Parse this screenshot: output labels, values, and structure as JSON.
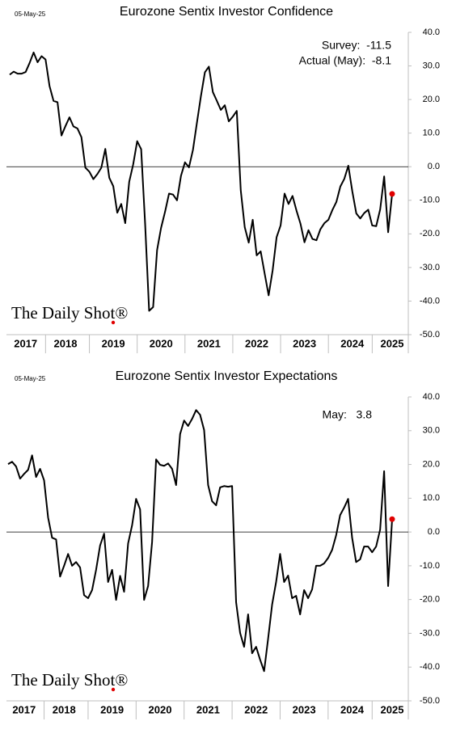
{
  "chart_data": [
    {
      "type": "line",
      "date_stamp": "05-May-25",
      "title": "Eurozone Sentix Investor Confidence",
      "annotations": [
        "Survey:  -11.5",
        "Actual (May):  -8.1"
      ],
      "watermark": "The Daily Shot®",
      "categories": [
        null,
        null,
        null,
        null,
        "2017",
        null,
        null,
        null,
        null,
        null,
        null,
        null,
        null,
        null,
        "2018",
        null,
        null,
        null,
        null,
        null,
        null,
        null,
        null,
        null,
        null,
        null,
        "2019",
        null,
        null,
        null,
        null,
        null,
        null,
        null,
        null,
        null,
        null,
        null,
        "2020",
        null,
        null,
        null,
        null,
        null,
        null,
        null,
        null,
        null,
        null,
        null,
        "2021",
        null,
        null,
        null,
        null,
        null,
        null,
        null,
        null,
        null,
        null,
        null,
        "2022",
        null,
        null,
        null,
        null,
        null,
        null,
        null,
        null,
        null,
        null,
        null,
        "2023",
        null,
        null,
        null,
        null,
        null,
        null,
        null,
        null,
        null,
        null,
        null,
        "2024",
        null,
        null,
        null,
        null,
        null,
        null,
        null,
        null,
        null,
        "2025"
      ],
      "values": [
        27.4,
        28.3,
        27.7,
        27.7,
        28.2,
        30.9,
        34.0,
        31.1,
        32.9,
        31.9,
        24.0,
        19.6,
        19.2,
        9.3,
        12.1,
        14.7,
        12.0,
        11.4,
        8.8,
        -0.3,
        -1.5,
        -3.7,
        -2.2,
        -0.3,
        5.3,
        -3.3,
        -5.8,
        -13.7,
        -11.1,
        -16.8,
        -4.5,
        0.7,
        7.6,
        5.2,
        -17.1,
        -42.9,
        -41.8,
        -24.8,
        -18.2,
        -13.4,
        -8.0,
        -8.3,
        -10.0,
        -2.7,
        1.3,
        -0.2,
        5.0,
        13.1,
        21.0,
        28.1,
        29.8,
        22.2,
        19.6,
        16.9,
        18.3,
        13.5,
        14.9,
        16.6,
        -7.0,
        -18.0,
        -22.6,
        -15.8,
        -26.4,
        -25.2,
        -31.8,
        -38.3,
        -30.9,
        -21.0,
        -17.5,
        -8.0,
        -11.1,
        -8.7,
        -13.1,
        -17.0,
        -22.5,
        -18.9,
        -21.5,
        -21.9,
        -18.6,
        -16.8,
        -15.8,
        -12.9,
        -10.5,
        -5.9,
        -3.6,
        0.3,
        -7.3,
        -13.9,
        -15.4,
        -13.8,
        -12.8,
        -17.5,
        -17.7,
        -12.7,
        -2.9,
        -19.5,
        -8.1
      ],
      "color": "#000000",
      "highlight_color": "#e00000",
      "zero_line": true,
      "ylim": [
        -50,
        40
      ],
      "yticks": [
        {
          "value": 40,
          "label": "40.0"
        },
        {
          "value": 30,
          "label": "30.0"
        },
        {
          "value": 20,
          "label": "20.0"
        },
        {
          "value": 10,
          "label": "10.0"
        },
        {
          "value": 0,
          "label": "0.0"
        },
        {
          "value": -10,
          "label": "-10.0"
        },
        {
          "value": -20,
          "label": "-20.0"
        },
        {
          "value": -30,
          "label": "-30.0"
        },
        {
          "value": -40,
          "label": "-40.0"
        },
        {
          "value": -50,
          "label": "-50.0"
        }
      ]
    },
    {
      "type": "line",
      "date_stamp": "05-May-25",
      "title": "Eurozone Sentix Investor Expectations",
      "annotations": [
        "May:   3.8"
      ],
      "watermark": "The Daily Shot®",
      "categories": [
        null,
        null,
        null,
        null,
        "2017",
        null,
        null,
        null,
        null,
        null,
        null,
        null,
        null,
        null,
        "2018",
        null,
        null,
        null,
        null,
        null,
        null,
        null,
        null,
        null,
        null,
        null,
        "2019",
        null,
        null,
        null,
        null,
        null,
        null,
        null,
        null,
        null,
        null,
        null,
        "2020",
        null,
        null,
        null,
        null,
        null,
        null,
        null,
        null,
        null,
        null,
        null,
        "2021",
        null,
        null,
        null,
        null,
        null,
        null,
        null,
        null,
        null,
        null,
        null,
        "2022",
        null,
        null,
        null,
        null,
        null,
        null,
        null,
        null,
        null,
        null,
        null,
        "2023",
        null,
        null,
        null,
        null,
        null,
        null,
        null,
        null,
        null,
        null,
        null,
        "2024",
        null,
        null,
        null,
        null,
        null,
        null,
        null,
        null,
        null,
        "2025"
      ],
      "values": [
        20.1,
        20.8,
        19.4,
        15.8,
        17.2,
        18.4,
        22.7,
        16.3,
        18.7,
        15.3,
        4.3,
        -1.7,
        -2.2,
        -13.2,
        -10.0,
        -6.5,
        -10.0,
        -8.9,
        -10.5,
        -18.7,
        -19.6,
        -17.2,
        -11.2,
        -4.0,
        -0.5,
        -14.8,
        -11.2,
        -20.1,
        -13.0,
        -17.7,
        -3.4,
        2.0,
        9.8,
        6.7,
        -20.1,
        -16.0,
        -2.9,
        21.5,
        19.9,
        19.6,
        20.3,
        18.7,
        13.9,
        29.0,
        33.0,
        31.4,
        33.5,
        36.1,
        34.7,
        30.2,
        13.9,
        9.1,
        7.9,
        13.2,
        13.6,
        13.4,
        13.6,
        -20.8,
        -29.9,
        -34.0,
        -24.4,
        -35.9,
        -34.0,
        -37.8,
        -41.2,
        -31.6,
        -21.5,
        -14.8,
        -6.5,
        -14.8,
        -12.9,
        -19.6,
        -18.9,
        -24.4,
        -17.2,
        -19.6,
        -17.0,
        -10.0,
        -10.0,
        -9.3,
        -7.7,
        -5.3,
        -1.0,
        5.0,
        7.2,
        9.8,
        -1.7,
        -8.9,
        -8.1,
        -4.3,
        -4.3,
        -6.0,
        -4.3,
        0.7,
        18.0,
        -16.0,
        3.8
      ],
      "color": "#000000",
      "highlight_color": "#e00000",
      "zero_line": true,
      "ylim": [
        -50,
        40
      ],
      "yticks": [
        {
          "value": 40,
          "label": "40.0"
        },
        {
          "value": 30,
          "label": "30.0"
        },
        {
          "value": 20,
          "label": "20.0"
        },
        {
          "value": 10,
          "label": "10.0"
        },
        {
          "value": 0,
          "label": "0.0"
        },
        {
          "value": -10,
          "label": "-10.0"
        },
        {
          "value": -20,
          "label": "-20.0"
        },
        {
          "value": -30,
          "label": "-30.0"
        },
        {
          "value": -40,
          "label": "-40.0"
        },
        {
          "value": -50,
          "label": "-50.0"
        }
      ]
    }
  ]
}
